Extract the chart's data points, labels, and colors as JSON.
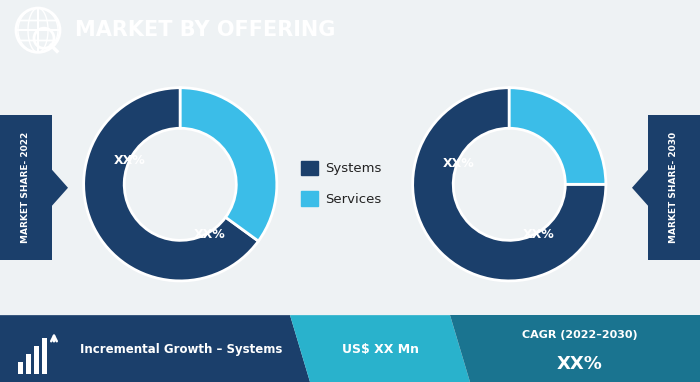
{
  "title": "MARKET BY OFFERING",
  "header_bg": "#1a7490",
  "header_text_color": "#ffffff",
  "background_color": "#eef2f4",
  "donut_colors": [
    "#1b3f6b",
    "#3bbde8"
  ],
  "chart1_values": [
    65,
    35
  ],
  "chart2_values": [
    75,
    25
  ],
  "chart1_labels": [
    "XX%",
    "XX%"
  ],
  "chart2_labels": [
    "XX%",
    "XX%"
  ],
  "legend_labels": [
    "Systems",
    "Services"
  ],
  "left_label": "MARKET SHARE- 2022",
  "right_label": "MARKET SHARE- 2030",
  "footer_dark_bg": "#1b3f6b",
  "footer_mid_bg": "#1a7490",
  "footer_light_bg": "#29b2cc",
  "footer_left_text": "Incremental Growth – Systems",
  "footer_mid_text": "US$ XX Mn",
  "footer_right_label": "CAGR (2022–2030)",
  "footer_right_value": "XX%",
  "side_tab_color": "#1b3f6b"
}
